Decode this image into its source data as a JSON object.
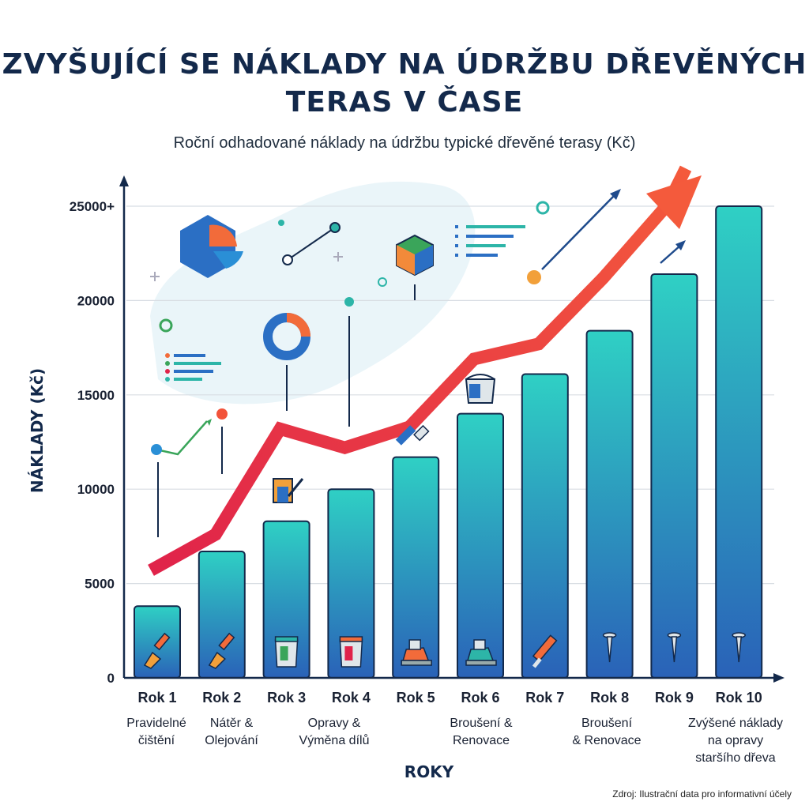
{
  "header": {
    "title": "ZVYŠUJÍCÍ SE NÁKLADY NA ÚDRŽBU DŘEVĚNÝCH TERAS V ČASE",
    "subtitle": "Roční odhadované náklady na údržbu typické dřevěné terasy (Kč)"
  },
  "chart_data": {
    "type": "bar",
    "title": "ZVYŠUJÍCÍ SE NÁKLADY NA ÚDRŽBU DŘEVĚNÝCH TERAS V ČASE",
    "subtitle": "Roční odhadované náklady na údržbu typické dřevěné terasy (Kč)",
    "xlabel": "ROKY",
    "ylabel": "NÁKLADY (Kč)",
    "ylim": [
      0,
      25000
    ],
    "yticks": [
      {
        "value": 0,
        "label": "0"
      },
      {
        "value": 5000,
        "label": "5000"
      },
      {
        "value": 10000,
        "label": "10000"
      },
      {
        "value": 15000,
        "label": "15000"
      },
      {
        "value": 20000,
        "label": "20000"
      },
      {
        "value": 25000,
        "label": "25000+"
      }
    ],
    "grid": true,
    "categories": [
      "Rok 1",
      "Rok 2",
      "Rok 3",
      "Rok 4",
      "Rok 5",
      "Rok 6",
      "Rok 7",
      "Rok 8",
      "Rok 9",
      "Rok 10"
    ],
    "values": [
      3800,
      6700,
      8300,
      10000,
      11700,
      14000,
      16100,
      18400,
      21400,
      25000
    ],
    "annotations": [
      {
        "category": "Rok 1",
        "lines": [
          "Pravidelné",
          "čištění"
        ]
      },
      {
        "category": "Rok 2",
        "lines": [
          "Nátěr &",
          "Olejování"
        ]
      },
      {
        "category": "Rok 3–4",
        "lines": [
          "Opravy &",
          "Výměna dílů"
        ]
      },
      {
        "category": "Rok 6",
        "lines": [
          "Broušení &",
          "Renovace"
        ]
      },
      {
        "category": "Rok 8",
        "lines": [
          "Broušení",
          "& Renovace"
        ]
      },
      {
        "category": "Rok 10",
        "lines": [
          "Zvýšené náklady",
          "na opravy",
          "staršího dřeva"
        ]
      }
    ],
    "bar_icons": [
      "brush-icon",
      "brush-icon",
      "paint-can-icon",
      "paint-can-icon",
      "sander-icon",
      "sander-icon",
      "caulk-gun-icon",
      "screw-icon",
      "screw-icon",
      "screw-icon"
    ],
    "colors": {
      "bar_top": "#2fd0c4",
      "bar_bottom": "#2a62b8",
      "trend": "#ee3a4a",
      "axis": "#13294b"
    }
  },
  "footer": {
    "source": "Zdroj: Ilustrační data pro informativní účely"
  }
}
